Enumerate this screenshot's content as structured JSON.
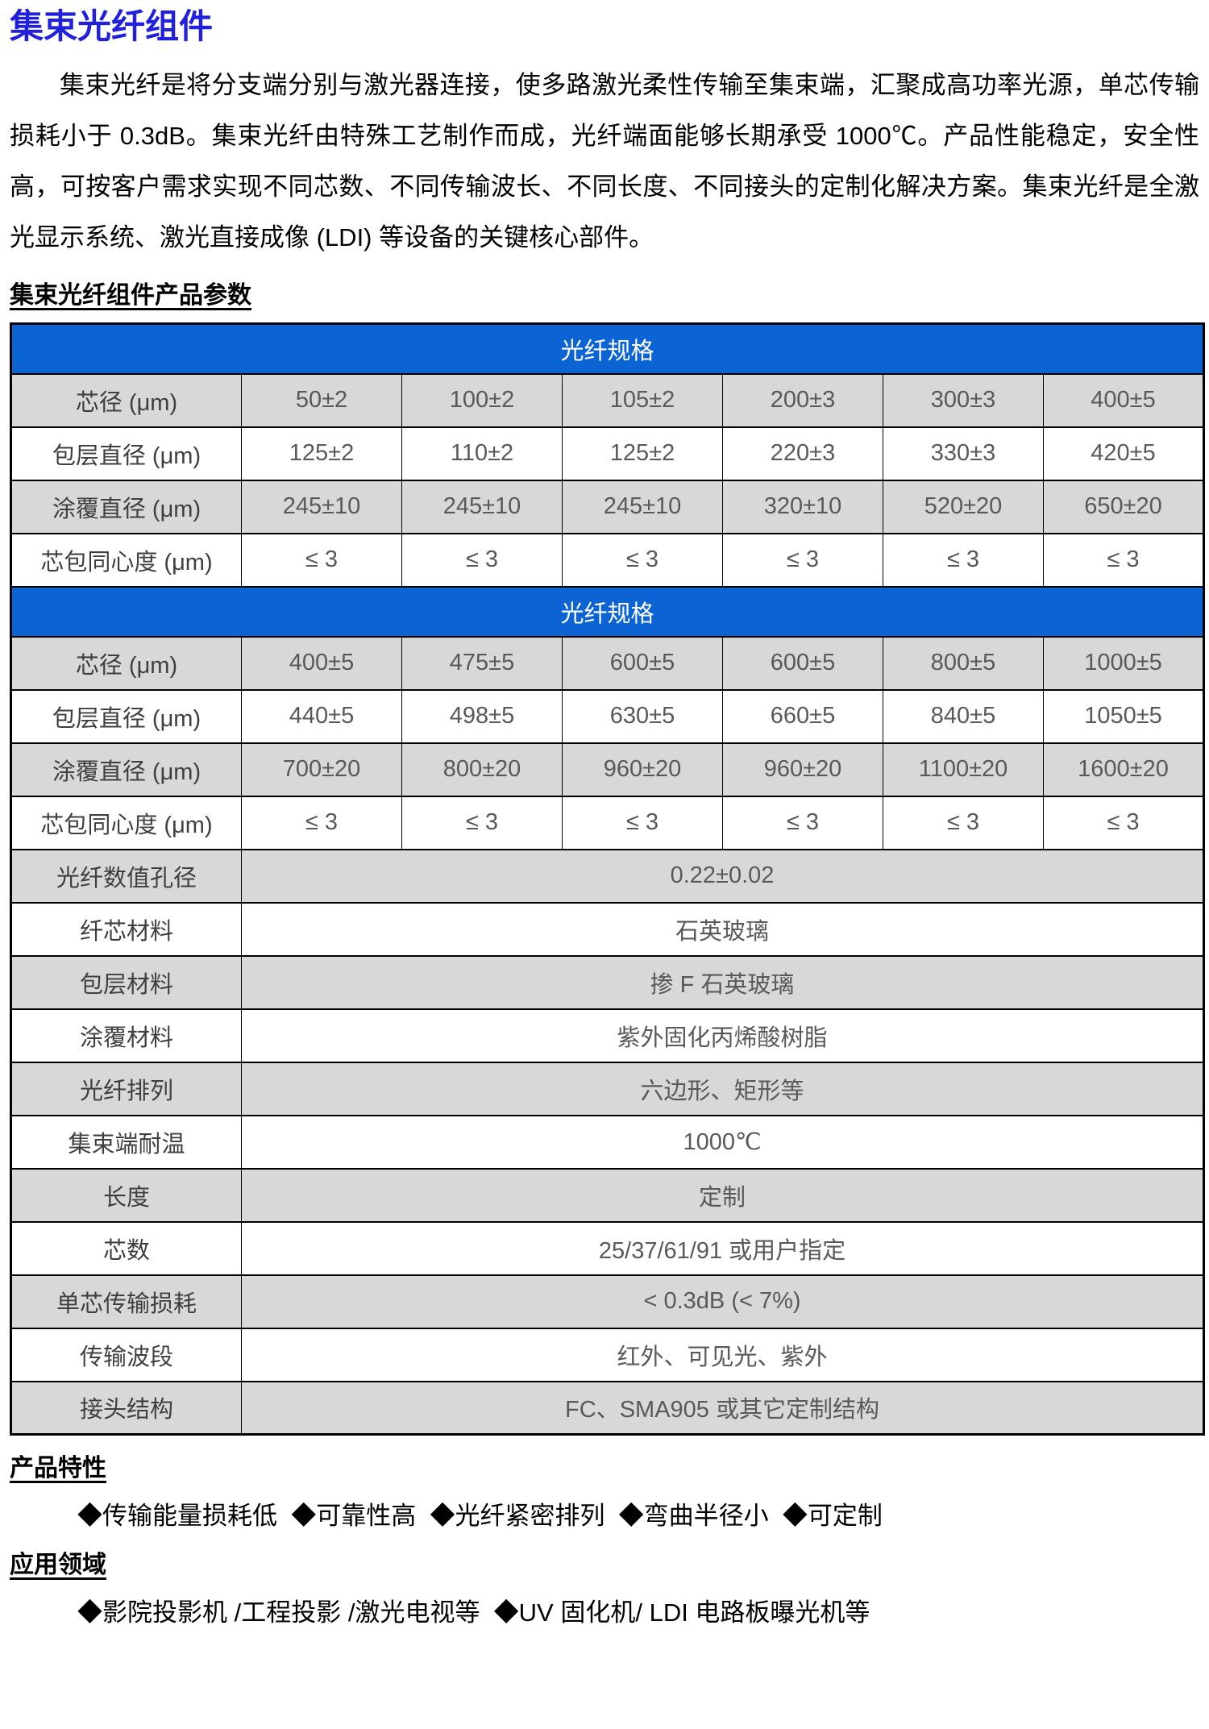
{
  "colors": {
    "title_blue": "#2020DD",
    "header_blue": "#0C63D4",
    "row_gray": "#D8D8D8",
    "cell_text": "#595959",
    "label_text": "#3F3F3F"
  },
  "doc": {
    "title": "集束光纤组件",
    "intro": "集束光纤是将分支端分别与激光器连接，使多路激光柔性传输至集束端，汇聚成高功率光源，单芯传输损耗小于 0.3dB。集束光纤由特殊工艺制作而成，光纤端面能够长期承受 1000℃。产品性能稳定，安全性高，可按客户需求实现不同芯数、不同传输波长、不同长度、不同接头的定制化解决方案。集束光纤是全激光显示系统、激光直接成像 (LDI) 等设备的关键核心部件。",
    "params_heading": "集束光纤组件产品参数",
    "features_heading": "产品特性",
    "features_line": "◆传输能量损耗低  ◆可靠性高  ◆光纤紧密排列  ◆弯曲半径小  ◆可定制",
    "applications_heading": "应用领域",
    "applications_line": "◆影院投影机 /工程投影 /激光电视等  ◆UV 固化机/ LDI 电路板曝光机等"
  },
  "spec_table": {
    "blocks": [
      {
        "header": "光纤规格",
        "rows": [
          {
            "label": "芯径 (μm)",
            "values": [
              "50±2",
              "100±2",
              "105±2",
              "200±3",
              "300±3",
              "400±5"
            ],
            "shaded": true
          },
          {
            "label": "包层直径 (μm)",
            "values": [
              "125±2",
              "110±2",
              "125±2",
              "220±3",
              "330±3",
              "420±5"
            ],
            "shaded": false
          },
          {
            "label": "涂覆直径 (μm)",
            "values": [
              "245±10",
              "245±10",
              "245±10",
              "320±10",
              "520±20",
              "650±20"
            ],
            "shaded": true
          },
          {
            "label": "芯包同心度 (μm)",
            "values": [
              "≤ 3",
              "≤ 3",
              "≤ 3",
              "≤ 3",
              "≤ 3",
              "≤ 3"
            ],
            "shaded": false
          }
        ]
      },
      {
        "header": "光纤规格",
        "rows": [
          {
            "label": "芯径 (μm)",
            "values": [
              "400±5",
              "475±5",
              "600±5",
              "600±5",
              "800±5",
              "1000±5"
            ],
            "shaded": true
          },
          {
            "label": "包层直径 (μm)",
            "values": [
              "440±5",
              "498±5",
              "630±5",
              "660±5",
              "840±5",
              "1050±5"
            ],
            "shaded": false
          },
          {
            "label": "涂覆直径 (μm)",
            "values": [
              "700±20",
              "800±20",
              "960±20",
              "960±20",
              "1100±20",
              "1600±20"
            ],
            "shaded": true
          },
          {
            "label": "芯包同心度 (μm)",
            "values": [
              "≤ 3",
              "≤ 3",
              "≤ 3",
              "≤ 3",
              "≤ 3",
              "≤ 3"
            ],
            "shaded": false
          }
        ]
      }
    ],
    "merged_rows": [
      {
        "label": "光纤数值孔径",
        "value": "0.22±0.02",
        "shaded": true
      },
      {
        "label": "纤芯材料",
        "value": "石英玻璃",
        "shaded": false
      },
      {
        "label": "包层材料",
        "value": "掺 F 石英玻璃",
        "shaded": true
      },
      {
        "label": "涂覆材料",
        "value": "紫外固化丙烯酸树脂",
        "shaded": false
      },
      {
        "label": "光纤排列",
        "value": "六边形、矩形等",
        "shaded": true
      },
      {
        "label": "集束端耐温",
        "value": "1000℃",
        "shaded": false
      },
      {
        "label": "长度",
        "value": "定制",
        "shaded": true
      },
      {
        "label": "芯数",
        "value": "25/37/61/91 或用户指定",
        "shaded": false
      },
      {
        "label": "单芯传输损耗",
        "value": "< 0.3dB (< 7%)",
        "shaded": true
      },
      {
        "label": "传输波段",
        "value": "红外、可见光、紫外",
        "shaded": false
      },
      {
        "label": "接头结构",
        "value": "FC、SMA905 或其它定制结构",
        "shaded": true
      }
    ]
  }
}
